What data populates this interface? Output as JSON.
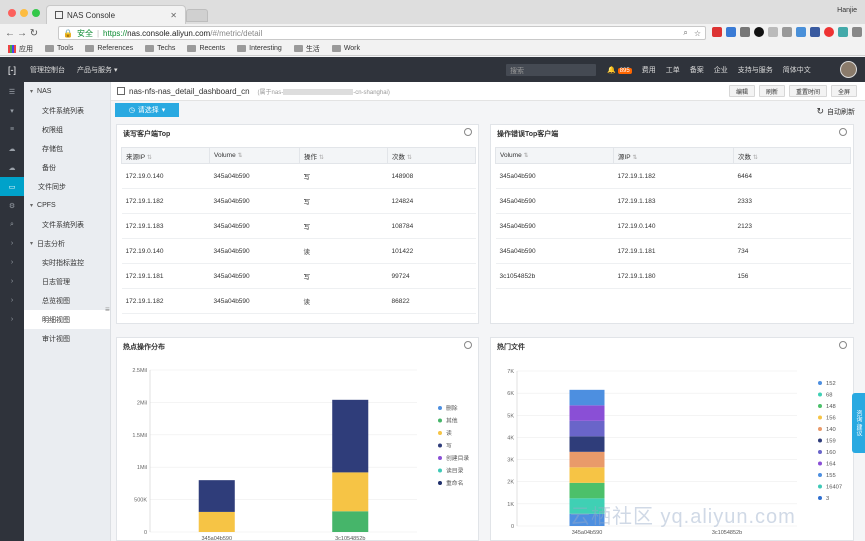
{
  "browser": {
    "tab_title": "NAS Console",
    "user": "Hanjie",
    "url_secure": "安全",
    "url_scheme": "https://",
    "url_host": "nas.console.aliyun.com",
    "url_path": "/#/metric/detail",
    "bookmarks": [
      "应用",
      "Tools",
      "References",
      "Techs",
      "Recents",
      "Interesting",
      "生活",
      "Work"
    ]
  },
  "topnav": {
    "items": [
      "管理控制台",
      "产品与服务 ▾"
    ],
    "search_placeholder": "搜索",
    "notif_count": "895",
    "right_items": [
      "费用",
      "工单",
      "备案",
      "企业",
      "支持与服务",
      "简体中文"
    ]
  },
  "sidebar": {
    "items": [
      {
        "label": "NAS",
        "level": 1,
        "caret": "▾"
      },
      {
        "label": "文件系统列表",
        "level": 2
      },
      {
        "label": "权限组",
        "level": 2
      },
      {
        "label": "存储包",
        "level": 2
      },
      {
        "label": "备份",
        "level": 2
      },
      {
        "label": "文件同步",
        "level": 1
      },
      {
        "label": "CPFS",
        "level": 1,
        "caret": "▾"
      },
      {
        "label": "文件系统列表",
        "level": 2
      },
      {
        "label": "日志分析",
        "level": 1,
        "caret": "▾"
      },
      {
        "label": "实时指标监控",
        "level": 2
      },
      {
        "label": "日志管理",
        "level": 2
      },
      {
        "label": "总览视图",
        "level": 2
      },
      {
        "label": "明细视图",
        "level": 2,
        "active": true
      },
      {
        "label": "审计视图",
        "level": 2
      }
    ]
  },
  "header": {
    "title": "nas-nfs-nas_detail_dashboard_cn",
    "subtitle_prefix": "(属于nas-",
    "subtitle_suffix": "-cn-shanghai)",
    "buttons": [
      "编辑",
      "刷新",
      "重置时间",
      "全屏"
    ],
    "select_label": "请选择",
    "auto_refresh": "自动刷新"
  },
  "panel_rw": {
    "title": "读写客户端Top",
    "columns": [
      "来源IP",
      "Volume",
      "操作",
      "次数"
    ],
    "rows": [
      [
        "172.19.0.140",
        "345a04b590",
        "写",
        "148908"
      ],
      [
        "172.19.1.182",
        "345a04b590",
        "写",
        "124824"
      ],
      [
        "172.19.1.183",
        "345a04b590",
        "写",
        "108784"
      ],
      [
        "172.19.0.140",
        "345a04b590",
        "读",
        "101422"
      ],
      [
        "172.19.1.181",
        "345a04b590",
        "写",
        "99724"
      ],
      [
        "172.19.1.182",
        "345a04b590",
        "读",
        "86822"
      ]
    ]
  },
  "panel_err": {
    "title": "操作错误Top客户端",
    "columns": [
      "Volume",
      "源IP",
      "次数"
    ],
    "rows": [
      [
        "345a04b590",
        "172.19.1.182",
        "6464"
      ],
      [
        "345a04b590",
        "172.19.1.183",
        "2333"
      ],
      [
        "345a04b590",
        "172.19.0.140",
        "2123"
      ],
      [
        "345a04b590",
        "172.19.1.181",
        "734"
      ],
      [
        "3c1054852b",
        "172.19.1.180",
        "156"
      ]
    ]
  },
  "panel_hot_ops": {
    "title": "热点操作分布"
  },
  "panel_hot_files": {
    "title": "热门文件"
  },
  "chart_data": [
    {
      "type": "bar",
      "stacked": true,
      "categories": [
        "345a04b590",
        "3c1054852b"
      ],
      "yticks": [
        "0",
        "500K",
        "1Mil",
        "1.5Mil",
        "2Mil",
        "2.5Mil"
      ],
      "ylim": [
        0,
        2500000
      ],
      "legend_position": "right",
      "series": [
        {
          "name": "删除",
          "color": "#4d8fe0",
          "values": [
            0,
            0
          ]
        },
        {
          "name": "其他",
          "color": "#46b56a",
          "values": [
            0,
            320000
          ]
        },
        {
          "name": "读",
          "color": "#f6c445",
          "values": [
            310000,
            600000
          ]
        },
        {
          "name": "写",
          "color": "#2f3d7a",
          "values": [
            490000,
            1120000
          ]
        },
        {
          "name": "创建目录",
          "color": "#8a4fd6",
          "values": [
            0,
            0
          ]
        },
        {
          "name": "读目录",
          "color": "#3ec9b7",
          "values": [
            0,
            0
          ]
        },
        {
          "name": "重命名",
          "color": "#1f2f6b",
          "values": [
            0,
            0
          ]
        }
      ]
    },
    {
      "type": "bar",
      "stacked": true,
      "categories": [
        "345a04b590",
        "3c1054852b"
      ],
      "yticks": [
        "0",
        "1K",
        "2K",
        "3K",
        "4K",
        "5K",
        "6K",
        "7K"
      ],
      "ylim": [
        0,
        7000
      ],
      "legend_position": "right",
      "series": [
        {
          "name": "152",
          "color": "#4d8fe0",
          "values": [
            550,
            0
          ]
        },
        {
          "name": "68",
          "color": "#3fd0b4",
          "values": [
            700,
            0
          ]
        },
        {
          "name": "148",
          "color": "#4cc06a",
          "values": [
            700,
            0
          ]
        },
        {
          "name": "156",
          "color": "#f6c445",
          "values": [
            700,
            0
          ]
        },
        {
          "name": "140",
          "color": "#e99a6a",
          "values": [
            700,
            0
          ]
        },
        {
          "name": "159",
          "color": "#2f3d7a",
          "values": [
            700,
            0
          ]
        },
        {
          "name": "160",
          "color": "#6a65c9",
          "values": [
            700,
            0
          ]
        },
        {
          "name": "164",
          "color": "#8a4fd6",
          "values": [
            700,
            0
          ]
        },
        {
          "name": "155",
          "color": "#4d8fe0",
          "values": [
            700,
            0
          ]
        },
        {
          "name": "16407",
          "color": "#3ec9b7",
          "values": [
            0,
            0
          ]
        },
        {
          "name": "3",
          "color": "#2f6fd0",
          "values": [
            0,
            0
          ]
        }
      ]
    }
  ],
  "floater": "咨询·建议",
  "watermark": "云栖社区 yq.aliyun.com"
}
